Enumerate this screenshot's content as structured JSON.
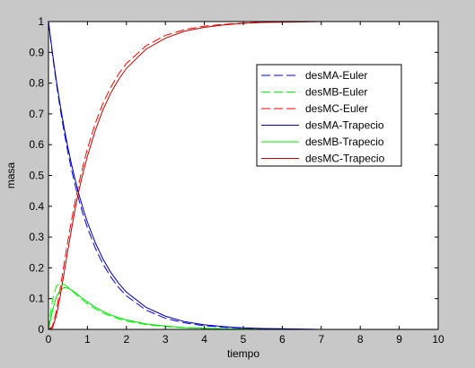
{
  "chart_data": {
    "type": "line",
    "title": "",
    "xlabel": "tiempo",
    "ylabel": "masa",
    "xlim": [
      0,
      10
    ],
    "ylim": [
      0,
      1
    ],
    "xticks": [
      0,
      1,
      2,
      3,
      4,
      5,
      6,
      7,
      8,
      9,
      10
    ],
    "yticks": [
      0,
      0.1,
      0.2,
      0.3,
      0.4,
      0.5,
      0.6,
      0.7,
      0.8,
      0.9,
      1
    ],
    "xtick_labels": [
      "0",
      "1",
      "2",
      "3",
      "4",
      "5",
      "6",
      "7",
      "8",
      "9",
      "10"
    ],
    "ytick_labels": [
      "0",
      "0.1",
      "0.2",
      "0.3",
      "0.4",
      "0.5",
      "0.6",
      "0.7",
      "0.8",
      "0.9",
      "1"
    ],
    "grid": false,
    "legend_position": "upper-right",
    "x": [
      0,
      0.1,
      0.2,
      0.3,
      0.4,
      0.5,
      0.6,
      0.7,
      0.8,
      0.9,
      1.0,
      1.2,
      1.4,
      1.6,
      1.8,
      2.0,
      2.5,
      3.0,
      3.5,
      4.0,
      4.5,
      5.0,
      5.5,
      6.0,
      7.0,
      8.0,
      9.0,
      10.0
    ],
    "series": [
      {
        "name": "desMA-Euler",
        "color": "#0000ff",
        "dash": "dashed",
        "values": [
          1.0,
          0.895,
          0.801,
          0.717,
          0.642,
          0.574,
          0.514,
          0.46,
          0.412,
          0.368,
          0.33,
          0.264,
          0.212,
          0.17,
          0.136,
          0.109,
          0.063,
          0.036,
          0.021,
          0.012,
          0.007,
          0.004,
          0.002,
          0.001,
          0.0,
          0.0,
          0.0,
          0.0
        ]
      },
      {
        "name": "desMB-Euler",
        "color": "#00ff00",
        "dash": "dashed",
        "values": [
          0.0,
          0.095,
          0.14,
          0.15,
          0.146,
          0.137,
          0.126,
          0.114,
          0.103,
          0.093,
          0.083,
          0.067,
          0.053,
          0.043,
          0.034,
          0.027,
          0.016,
          0.009,
          0.005,
          0.003,
          0.002,
          0.001,
          0.0,
          0.0,
          0.0,
          0.0,
          0.0,
          0.0
        ]
      },
      {
        "name": "desMC-Euler",
        "color": "#ff0000",
        "dash": "dashed",
        "values": [
          0.0,
          0.01,
          0.059,
          0.133,
          0.212,
          0.289,
          0.36,
          0.426,
          0.485,
          0.539,
          0.587,
          0.669,
          0.735,
          0.787,
          0.83,
          0.864,
          0.921,
          0.955,
          0.974,
          0.985,
          0.991,
          0.995,
          0.998,
          0.999,
          1.0,
          1.0,
          1.0,
          1.0
        ]
      },
      {
        "name": "desMA-Trapecio",
        "color": "#0000a0",
        "dash": "solid",
        "values": [
          1.0,
          0.9,
          0.81,
          0.729,
          0.656,
          0.59,
          0.531,
          0.478,
          0.43,
          0.387,
          0.348,
          0.282,
          0.228,
          0.185,
          0.15,
          0.121,
          0.072,
          0.043,
          0.025,
          0.015,
          0.009,
          0.005,
          0.003,
          0.002,
          0.0,
          0.0,
          0.0,
          0.0
        ]
      },
      {
        "name": "desMB-Trapecio",
        "color": "#00e000",
        "dash": "solid",
        "values": [
          0.0,
          0.06,
          0.105,
          0.128,
          0.136,
          0.134,
          0.127,
          0.118,
          0.108,
          0.098,
          0.089,
          0.072,
          0.058,
          0.047,
          0.038,
          0.031,
          0.018,
          0.011,
          0.006,
          0.004,
          0.002,
          0.001,
          0.0,
          0.0,
          0.0,
          0.0,
          0.0,
          0.0
        ]
      },
      {
        "name": "desMC-Trapecio",
        "color": "#c00000",
        "dash": "solid",
        "values": [
          0.0,
          0.004,
          0.043,
          0.107,
          0.183,
          0.259,
          0.332,
          0.402,
          0.462,
          0.515,
          0.563,
          0.646,
          0.714,
          0.768,
          0.812,
          0.848,
          0.91,
          0.946,
          0.969,
          0.981,
          0.989,
          0.994,
          0.997,
          0.998,
          1.0,
          1.0,
          1.0,
          1.0
        ]
      }
    ]
  }
}
